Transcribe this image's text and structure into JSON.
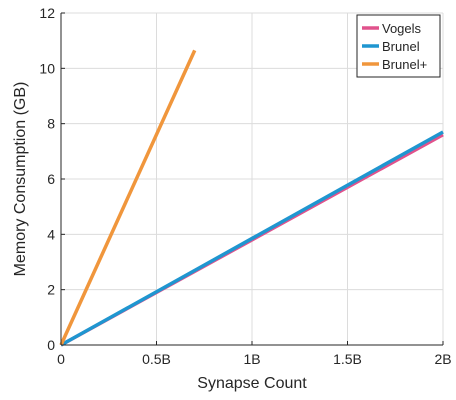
{
  "chart_data": {
    "type": "line",
    "title": "",
    "xlabel": "Synapse Count",
    "ylabel": "Memory Consumption (GB)",
    "xlim": [
      0,
      2
    ],
    "ylim": [
      0,
      12
    ],
    "x_unit": "billion synapses",
    "x_ticks": [
      0,
      0.5,
      1,
      1.5,
      2
    ],
    "x_tick_labels": [
      "0",
      "0.5B",
      "1B",
      "1.5B",
      "2B"
    ],
    "y_ticks": [
      0,
      2,
      4,
      6,
      8,
      10,
      12
    ],
    "y_tick_labels": [
      "0",
      "2",
      "4",
      "6",
      "8",
      "10",
      "12"
    ],
    "grid": true,
    "legend_position": "top-right",
    "series": [
      {
        "name": "Vogels",
        "color": "#e0528c",
        "x": [
          0,
          2
        ],
        "y": [
          0,
          7.6
        ]
      },
      {
        "name": "Brunel",
        "color": "#1f96d0",
        "x": [
          0,
          2
        ],
        "y": [
          0,
          7.7
        ]
      },
      {
        "name": "Brunel+",
        "color": "#f0963c",
        "x": [
          0,
          0.7
        ],
        "y": [
          0,
          10.65
        ]
      }
    ]
  }
}
